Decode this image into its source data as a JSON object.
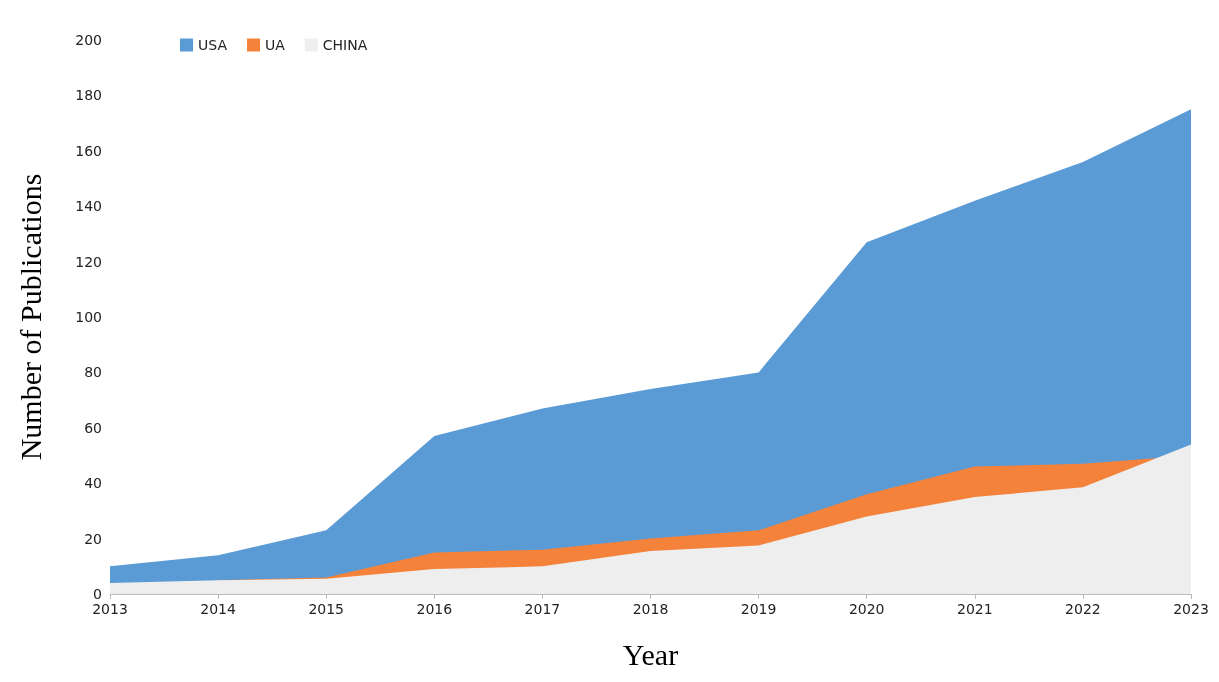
{
  "chart_data": {
    "type": "area",
    "xlabel": "Year",
    "ylabel": "Number of Publications",
    "categories": [
      "2013",
      "2014",
      "2015",
      "2016",
      "2017",
      "2018",
      "2019",
      "2020",
      "2021",
      "2022",
      "2023"
    ],
    "ylim": [
      0,
      200
    ],
    "yticks": [
      0,
      20,
      40,
      60,
      80,
      100,
      120,
      140,
      160,
      180,
      200
    ],
    "grid": false,
    "legend": "top left",
    "marker": "none",
    "series": [
      {
        "name": "USA",
        "color": "#5b9bd5",
        "values": [
          10,
          14,
          23,
          57,
          67,
          74,
          80,
          127,
          142,
          156,
          175
        ]
      },
      {
        "name": "UA",
        "color": "#f4823a",
        "values": [
          null,
          5,
          6,
          15,
          16,
          20,
          23,
          36,
          46,
          47,
          50
        ]
      },
      {
        "name": "CHINA",
        "color": "#eeeeee",
        "values": [
          4,
          5,
          5.5,
          9,
          10,
          15.5,
          17.5,
          28,
          35,
          38.5,
          54
        ]
      }
    ]
  }
}
